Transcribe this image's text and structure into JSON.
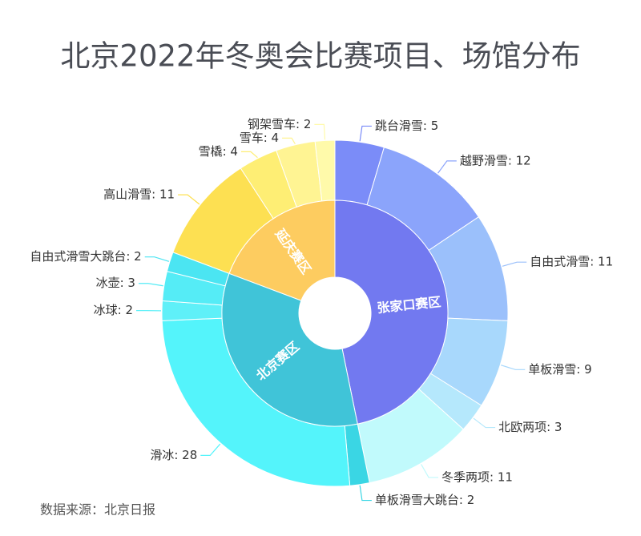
{
  "chart_data": {
    "type": "sunburst",
    "title": "北京2022年冬奥会比赛项目、场馆分布",
    "source": "数据来源：北京日报",
    "zones": [
      {
        "name": "张家口赛区",
        "color": "#7279f0",
        "children": [
          {
            "label": "跳台滑雪: 5",
            "value": 5,
            "color": "#7b8cf8"
          },
          {
            "label": "越野滑雪: 12",
            "value": 12,
            "color": "#8ba4fb"
          },
          {
            "label": "自由式滑雪: 11",
            "value": 11,
            "color": "#9bc0fb"
          },
          {
            "label": "单板滑雪: 9",
            "value": 9,
            "color": "#a8d8fc"
          },
          {
            "label": "北欧两项: 3",
            "value": 3,
            "color": "#b5e8fc"
          },
          {
            "label": "冬季两项: 11",
            "value": 11,
            "color": "#c1fafc"
          }
        ]
      },
      {
        "name": "北京赛区",
        "color": "#40c4d8",
        "children": [
          {
            "label": "单板滑雪大跳台: 2",
            "value": 2,
            "color": "#3ad6e4"
          },
          {
            "label": "滑冰: 28",
            "value": 28,
            "color": "#54f4fb"
          },
          {
            "label": "冰球: 2",
            "value": 2,
            "color": "#5ff0f8"
          },
          {
            "label": "冰壶: 3",
            "value": 3,
            "color": "#55ecf6"
          },
          {
            "label": "自由式滑雪大跳台: 2",
            "value": 2,
            "color": "#4be5f2"
          }
        ]
      },
      {
        "name": "延庆赛区",
        "color": "#fdcc60",
        "children": [
          {
            "label": "高山滑雪: 11",
            "value": 11,
            "color": "#fde052"
          },
          {
            "label": "雪橇: 4",
            "value": 4,
            "color": "#feee74"
          },
          {
            "label": "雪车: 4",
            "value": 4,
            "color": "#fff493"
          },
          {
            "label": "钢架雪车: 2",
            "value": 2,
            "color": "#fffaaa"
          }
        ]
      }
    ]
  }
}
